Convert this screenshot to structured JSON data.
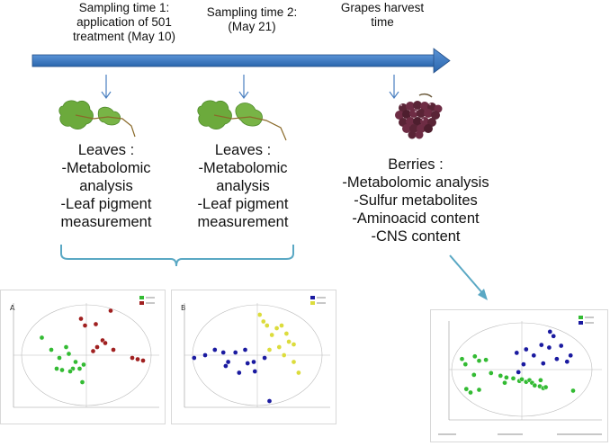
{
  "timeline": {
    "color": "#2e6fb7",
    "label_1": "Sampling time 1:\napplication of 501\ntreatment (May 10)",
    "label_2": "Sampling time 2:\n(May 21)",
    "label_3": "Grapes harvest\ntime"
  },
  "groups": {
    "leaves_1": "Leaves :\n-Metabolomic\nanalysis\n-Leaf pigment\nmeasurement",
    "leaves_2": "Leaves :\n-Metabolomic\nanalysis\n-Leaf pigment\nmeasurement",
    "berries": "Berries :\n-Metabolomic analysis\n-Sulfur metabolites\n-Aminoacid content\n-CNS content"
  },
  "plots": {
    "plot_a": {
      "panel_label": "A",
      "series": [
        {
          "color": "#33bb33",
          "points": [
            [
              -0.33,
              0.13
            ],
            [
              -0.26,
              0.04
            ],
            [
              -0.2,
              -0.02
            ],
            [
              -0.15,
              0.06
            ],
            [
              -0.13,
              0.01
            ],
            [
              -0.1,
              -0.1
            ],
            [
              -0.05,
              -0.1
            ],
            [
              -0.02,
              -0.07
            ],
            [
              -0.22,
              -0.1
            ],
            [
              -0.18,
              -0.11
            ],
            [
              -0.12,
              -0.12
            ],
            [
              -0.08,
              -0.05
            ],
            [
              -0.03,
              -0.2
            ]
          ]
        },
        {
          "color": "#a02020",
          "points": [
            [
              -0.04,
              0.27
            ],
            [
              -0.01,
              0.22
            ],
            [
              0.07,
              0.23
            ],
            [
              0.18,
              0.33
            ],
            [
              0.12,
              0.11
            ],
            [
              0.08,
              0.06
            ],
            [
              0.05,
              0.03
            ],
            [
              0.14,
              0.09
            ],
            [
              0.2,
              0.04
            ],
            [
              0.34,
              -0.02
            ],
            [
              0.38,
              -0.03
            ],
            [
              0.42,
              -0.04
            ]
          ]
        }
      ]
    },
    "plot_b": {
      "panel_label": "B",
      "series": [
        {
          "color": "#1a1aa0",
          "points": [
            [
              -0.52,
              -0.02
            ],
            [
              -0.43,
              0.0
            ],
            [
              -0.35,
              0.04
            ],
            [
              -0.28,
              0.02
            ],
            [
              -0.18,
              0.02
            ],
            [
              -0.1,
              0.04
            ],
            [
              -0.03,
              -0.05
            ],
            [
              0.06,
              -0.02
            ],
            [
              -0.26,
              -0.08
            ],
            [
              -0.15,
              -0.13
            ],
            [
              -0.08,
              -0.06
            ],
            [
              0.1,
              -0.34
            ],
            [
              -0.24,
              -0.05
            ],
            [
              -0.02,
              -0.12
            ]
          ]
        },
        {
          "color": "#dcdc3c",
          "points": [
            [
              0.02,
              0.3
            ],
            [
              0.05,
              0.25
            ],
            [
              0.08,
              0.22
            ],
            [
              0.12,
              0.15
            ],
            [
              0.16,
              0.2
            ],
            [
              0.2,
              0.22
            ],
            [
              0.24,
              0.16
            ],
            [
              0.26,
              0.1
            ],
            [
              0.3,
              0.08
            ],
            [
              0.18,
              0.06
            ],
            [
              0.22,
              0.0
            ],
            [
              0.3,
              -0.05
            ],
            [
              0.34,
              -0.13
            ],
            [
              0.1,
              0.04
            ]
          ]
        }
      ]
    },
    "plot_c": {
      "series": [
        {
          "color": "#33bb33",
          "points": [
            [
              -7000,
              1200
            ],
            [
              -6600,
              600
            ],
            [
              -5500,
              1500
            ],
            [
              -5000,
              1000
            ],
            [
              -4200,
              1100
            ],
            [
              -5600,
              -600
            ],
            [
              -3600,
              -400
            ],
            [
              -2500,
              -700
            ],
            [
              -2000,
              -1500
            ],
            [
              -1800,
              -900
            ],
            [
              -1000,
              -1000
            ],
            [
              -300,
              -1300
            ],
            [
              0,
              -1100
            ],
            [
              500,
              -1400
            ],
            [
              900,
              -1200
            ],
            [
              1200,
              -1500
            ],
            [
              1500,
              -1800
            ],
            [
              2100,
              -1900
            ],
            [
              2500,
              -2100
            ],
            [
              2800,
              -2000
            ],
            [
              2200,
              -1200
            ],
            [
              6000,
              -2400
            ],
            [
              -6500,
              -2200
            ],
            [
              -6000,
              -2600
            ],
            [
              -5000,
              -2300
            ]
          ]
        },
        {
          "color": "#1a1aa0",
          "points": [
            [
              -600,
              1900
            ],
            [
              500,
              2300
            ],
            [
              1400,
              1600
            ],
            [
              2300,
              2800
            ],
            [
              3300,
              4300
            ],
            [
              3700,
              3800
            ],
            [
              3200,
              2500
            ],
            [
              4600,
              2700
            ],
            [
              5700,
              1600
            ],
            [
              5300,
              900
            ],
            [
              4100,
              1200
            ],
            [
              2500,
              700
            ],
            [
              200,
              600
            ],
            [
              -400,
              -300
            ]
          ]
        }
      ]
    }
  }
}
